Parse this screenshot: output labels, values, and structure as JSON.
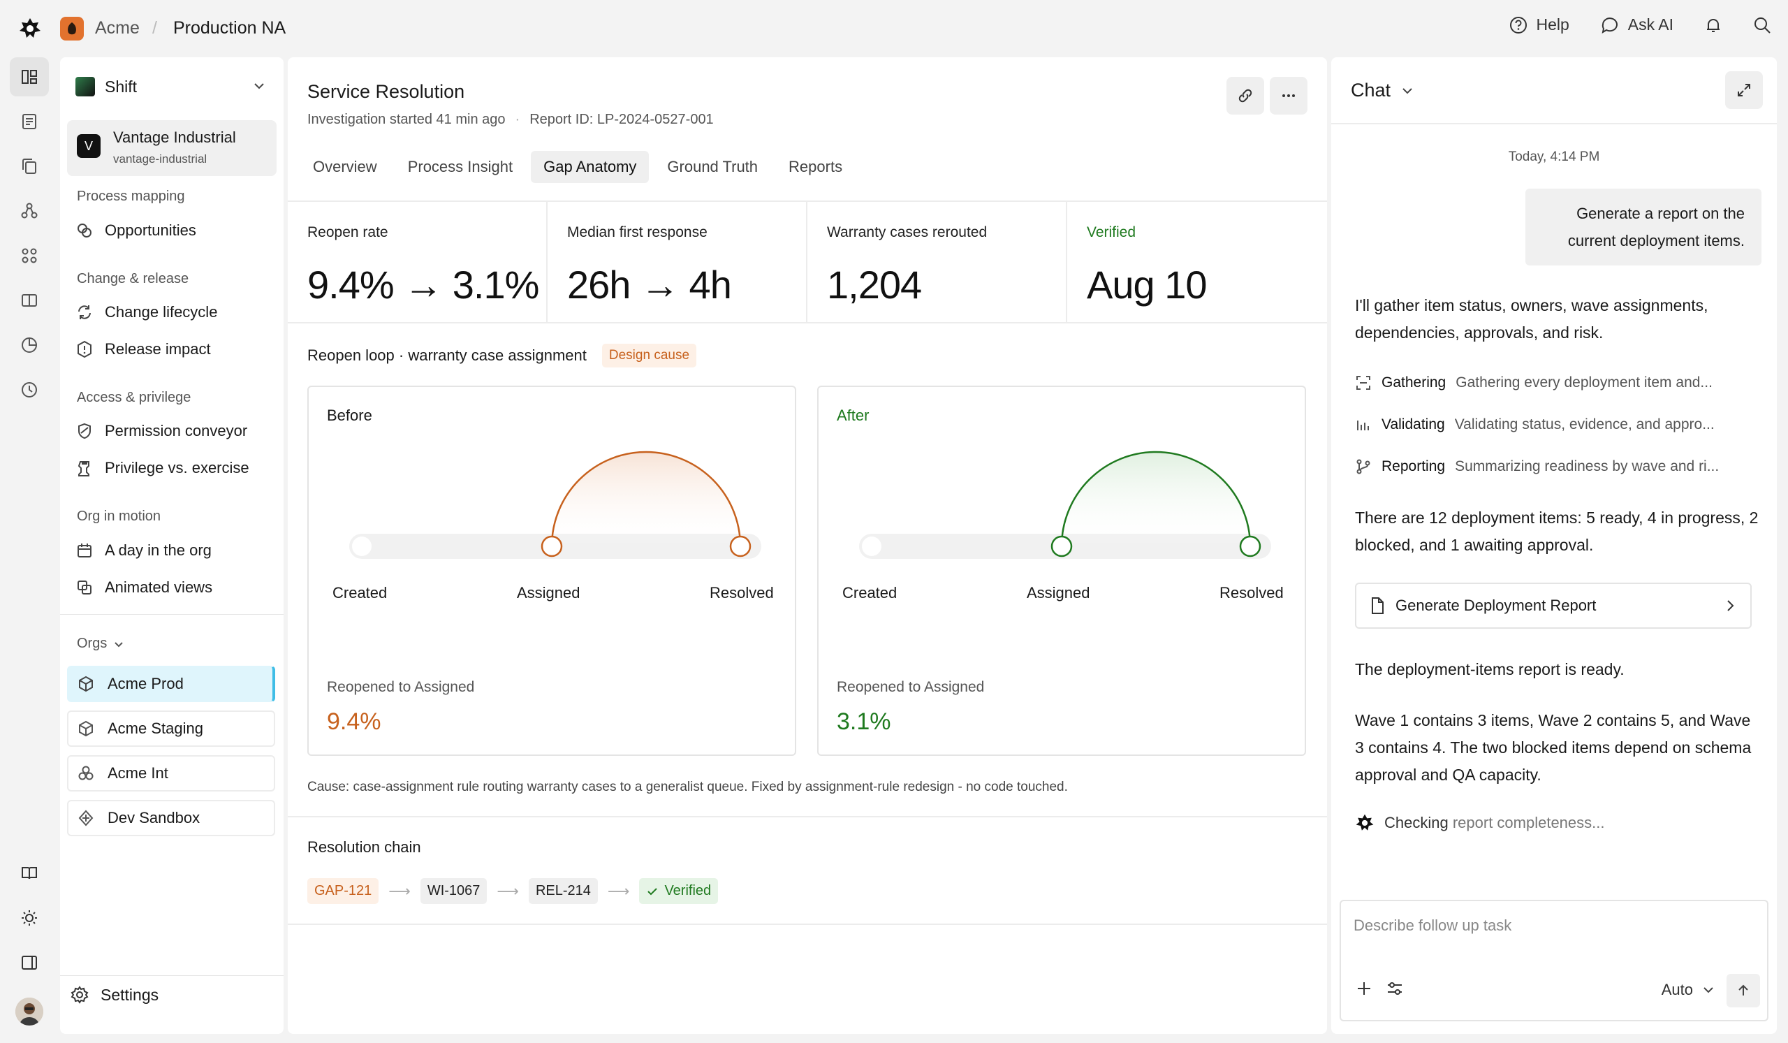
{
  "topbar": {
    "org": "Acme",
    "separator": "/",
    "environment": "Production NA",
    "help": "Help",
    "ask_ai": "Ask AI"
  },
  "sidebar": {
    "workspace": "Shift",
    "tenant_name": "Vantage Industrial",
    "tenant_slug": "vantage-industrial",
    "tenant_initial": "V",
    "sections": [
      {
        "label": "Process mapping",
        "items": [
          "Opportunities"
        ]
      },
      {
        "label": "Change & release",
        "items": [
          "Change lifecycle",
          "Release impact"
        ]
      },
      {
        "label": "Access & privilege",
        "items": [
          "Permission conveyor",
          "Privilege vs. exercise"
        ]
      },
      {
        "label": "Org in motion",
        "items": [
          "A day in the org",
          "Animated views"
        ]
      }
    ],
    "orgs_label": "Orgs",
    "orgs": [
      "Acme Prod",
      "Acme Staging",
      "Acme Int",
      "Dev Sandbox"
    ],
    "settings": "Settings"
  },
  "main": {
    "title": "Service Resolution",
    "started": "Investigation started 41 min ago",
    "dot": "·",
    "report_id": "Report ID: LP-2024-0527-001",
    "tabs": [
      "Overview",
      "Process Insight",
      "Gap Anatomy",
      "Ground Truth",
      "Reports"
    ],
    "active_tab": "Gap Anatomy",
    "stats": [
      {
        "label": "Reopen rate",
        "value": "9.4% → 3.1%"
      },
      {
        "label": "Median first response",
        "value": "26h → 4h"
      },
      {
        "label": "Warranty cases rerouted",
        "value": "1,204"
      },
      {
        "label": "Verified",
        "value": "Aug 10"
      }
    ],
    "loop_title": "Reopen loop · warranty case assignment",
    "loop_badge": "Design cause",
    "before": {
      "title": "Before",
      "labels": [
        "Created",
        "Assigned",
        "Resolved"
      ],
      "reopen_label": "Reopened to Assigned",
      "reopen_value": "9.4%",
      "color": "#c7611d"
    },
    "after": {
      "title": "After",
      "labels": [
        "Created",
        "Assigned",
        "Resolved"
      ],
      "reopen_label": "Reopened to Assigned",
      "reopen_value": "3.1%",
      "color": "#1f7a1f"
    },
    "cause": "Cause: case-assignment rule routing warranty cases to a generalist queue. Fixed by assignment-rule redesign - no code touched.",
    "resolution_title": "Resolution chain",
    "chain": [
      "GAP-121",
      "WI-1067",
      "REL-214",
      "Verified"
    ],
    "arrow": "⟶"
  },
  "chat": {
    "title": "Chat",
    "timestamp": "Today, 4:14 PM",
    "user_message": "Generate a report on the current deployment items.",
    "reply1": "I'll gather item status, owners, wave assignments, dependencies, approvals, and risk.",
    "steps": [
      {
        "name": "Gathering",
        "desc": "Gathering every deployment item and..."
      },
      {
        "name": "Validating",
        "desc": "Validating status, evidence, and appro..."
      },
      {
        "name": "Reporting",
        "desc": "Summarizing readiness by wave and ri..."
      }
    ],
    "reply2": "There are 12 deployment items: 5 ready, 4 in progress, 2 blocked, and 1 awaiting approval.",
    "report_button": "Generate Deployment Report",
    "reply3": "The deployment-items report is ready.",
    "reply4": "Wave 1 contains 3 items, Wave 2 contains 5, and Wave 3 contains 4. The two blocked items depend on schema approval and QA capacity.",
    "checking_prefix": "Checking",
    "checking_rest": " report completeness...",
    "input_placeholder": "Describe follow up task",
    "mode": "Auto"
  }
}
